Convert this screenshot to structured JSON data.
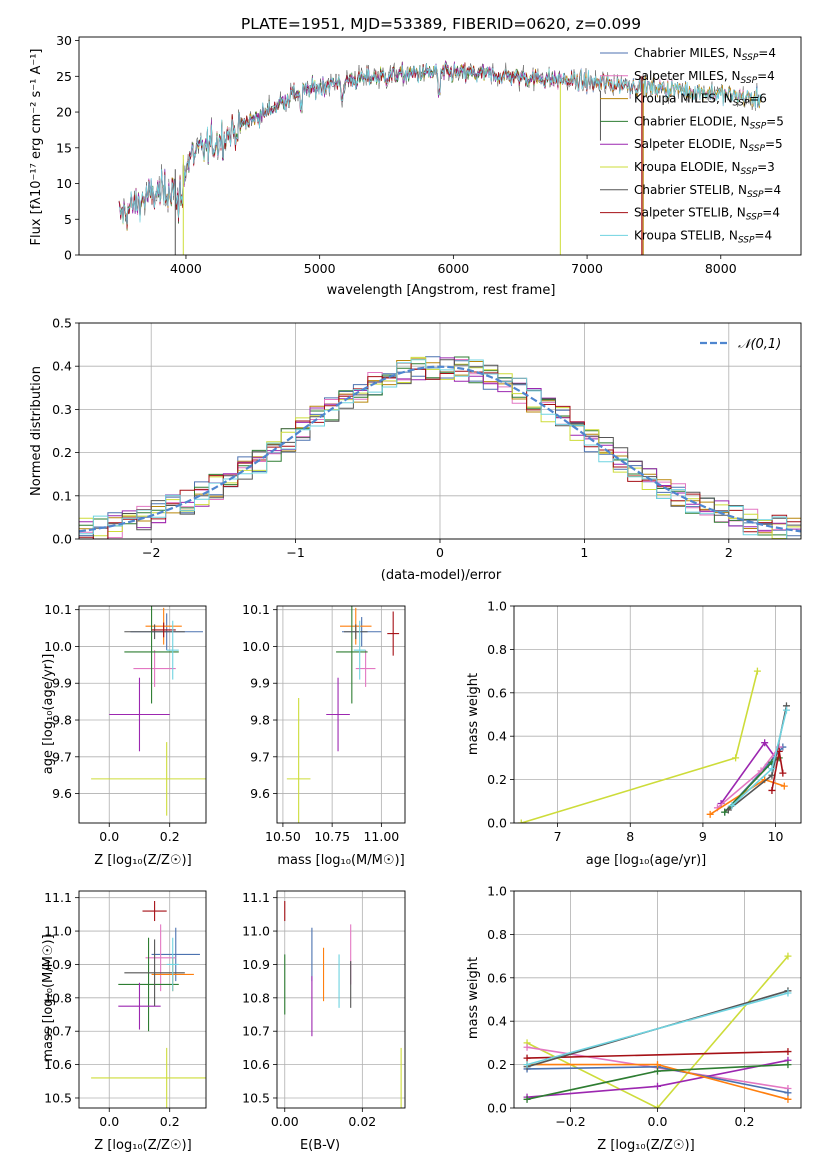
{
  "colors": {
    "Chabrier MILES": "#4c72b0",
    "Salpeter MILES": "#e377c2",
    "Kroupa MILES": "#b8860b",
    "Chabrier ELODIE": "#2e7d32",
    "Salpeter ELODIE": "#9c27b0",
    "Kroupa ELODIE": "#cddc39",
    "Chabrier STELIB": "#555555",
    "Salpeter STELIB": "#a50f15",
    "Kroupa STELIB": "#6fd3e0",
    "extra_orange": "#ff7f0e",
    "gauss": "#4f86cf"
  },
  "chart_data": [
    {
      "id": "spectrum",
      "type": "line",
      "title": "PLATE=1951, MJD=53389, FIBERID=0620, z=0.099",
      "xlabel": "wavelength [Angstrom, rest frame]",
      "ylabel": "Flux [fλ10⁻¹⁷ erg cm⁻² s⁻¹ A⁻¹]",
      "xlim": [
        3200,
        8600
      ],
      "ylim": [
        0,
        30.5
      ],
      "xticks": [
        4000,
        5000,
        6000,
        7000,
        8000
      ],
      "yticks": [
        0,
        5,
        10,
        15,
        20,
        25,
        30
      ],
      "legend_position": "right",
      "legend": [
        "Chabrier MILES, N_SSP=4",
        "Salpeter MILES, N_SSP=4",
        "Kroupa MILES, N_SSP=6",
        "Chabrier ELODIE, N_SSP=5",
        "Salpeter ELODIE, N_SSP=5",
        "Kroupa ELODIE, N_SSP=3",
        "Chabrier STELIB, N_SSP=4",
        "Salpeter STELIB, N_SSP=4",
        "Kroupa STELIB, N_SSP=4"
      ],
      "continuum": {
        "x": [
          3500,
          3700,
          3850,
          3950,
          4050,
          4200,
          4400,
          4600,
          4800,
          5000,
          5200,
          5500,
          5800,
          6000,
          6300,
          6600,
          7000,
          7300,
          7600,
          7900,
          8100,
          8300
        ],
        "y": [
          5.5,
          8.0,
          9.0,
          10.5,
          14.0,
          15.5,
          18.0,
          20.0,
          22.5,
          23.5,
          24.5,
          25.0,
          25.5,
          25.5,
          25.2,
          24.8,
          24.2,
          23.8,
          23.3,
          22.8,
          22.3,
          21.8
        ]
      }
    },
    {
      "id": "residuals",
      "type": "histogram",
      "xlabel": "(data-model)/error",
      "ylabel": "Normed distribution",
      "xlim": [
        -2.5,
        2.5
      ],
      "ylim": [
        0,
        0.5
      ],
      "xticks": [
        -2,
        -1,
        0,
        1,
        2
      ],
      "yticks": [
        0.0,
        0.1,
        0.2,
        0.3,
        0.4,
        0.5
      ],
      "legend_position": "top-right",
      "legend": [
        "𝒩(0,1)"
      ],
      "bin_width": 0.1
    },
    {
      "id": "age_vs_Z",
      "type": "errorbar",
      "xlabel": "Z [log₁₀(Z/Z☉)]",
      "ylabel": "age  [log₁₀(age/yr)]",
      "xlim": [
        -0.1,
        0.32
      ],
      "ylim": [
        9.52,
        10.11
      ],
      "xticks": [
        0.0,
        0.2
      ],
      "yticks": [
        9.6,
        9.7,
        9.8,
        9.9,
        10.0,
        10.1
      ],
      "points": [
        {
          "model": "Chabrier MILES",
          "x": 0.19,
          "xerr": 0.12,
          "y": 10.04,
          "yerr": 0.05
        },
        {
          "model": "Salpeter MILES",
          "x": 0.15,
          "xerr": 0.07,
          "y": 9.94,
          "yerr": 0.05
        },
        {
          "model": "extra_orange",
          "x": 0.18,
          "xerr": 0.06,
          "y": 10.055,
          "yerr": 0.05
        },
        {
          "model": "Chabrier ELODIE",
          "x": 0.14,
          "xerr": 0.09,
          "y": 9.985,
          "yerr": 0.14
        },
        {
          "model": "Salpeter ELODIE",
          "x": 0.1,
          "xerr": 0.1,
          "y": 9.815,
          "yerr": 0.1
        },
        {
          "model": "Kroupa ELODIE",
          "x": 0.19,
          "xerr": 0.25,
          "y": 9.64,
          "yerr": 0.1
        },
        {
          "model": "Chabrier STELIB",
          "x": 0.15,
          "xerr": 0.1,
          "y": 10.04,
          "yerr": 0.02
        },
        {
          "model": "Salpeter STELIB",
          "x": 0.18,
          "xerr": 0.04,
          "y": 10.045,
          "yerr": 0.02
        },
        {
          "model": "Kroupa STELIB",
          "x": 0.21,
          "xerr": 0.02,
          "y": 9.99,
          "yerr": 0.08
        }
      ]
    },
    {
      "id": "age_vs_mass",
      "type": "errorbar",
      "xlabel": "mass [log₁₀(M/M☉)]",
      "ylabel": "",
      "xlim": [
        10.47,
        11.12
      ],
      "ylim": [
        9.52,
        10.11
      ],
      "xticks": [
        10.5,
        10.75,
        11.0
      ],
      "xticklabels": [
        "10.50",
        "10.75",
        "11.00"
      ],
      "yticks": [
        9.6,
        9.7,
        9.8,
        9.9,
        10.0,
        10.1
      ],
      "points": [
        {
          "model": "Chabrier MILES",
          "x": 10.9,
          "xerr": 0.1,
          "y": 10.04,
          "yerr": 0.04
        },
        {
          "model": "Salpeter MILES",
          "x": 10.92,
          "xerr": 0.05,
          "y": 9.94,
          "yerr": 0.05
        },
        {
          "model": "extra_orange",
          "x": 10.87,
          "xerr": 0.08,
          "y": 10.055,
          "yerr": 0.05
        },
        {
          "model": "Chabrier ELODIE",
          "x": 10.85,
          "xerr": 0.08,
          "y": 9.985,
          "yerr": 0.14
        },
        {
          "model": "Salpeter ELODIE",
          "x": 10.78,
          "xerr": 0.06,
          "y": 9.815,
          "yerr": 0.1
        },
        {
          "model": "Kroupa ELODIE",
          "x": 10.58,
          "xerr": 0.06,
          "y": 9.64,
          "yerr": 0.22
        },
        {
          "model": "Chabrier STELIB",
          "x": 10.87,
          "xerr": 0.06,
          "y": 10.04,
          "yerr": 0.02
        },
        {
          "model": "Salpeter STELIB",
          "x": 11.06,
          "xerr": 0.03,
          "y": 10.035,
          "yerr": 0.06
        },
        {
          "model": "Kroupa STELIB",
          "x": 10.89,
          "xerr": 0.03,
          "y": 9.99,
          "yerr": 0.08
        }
      ]
    },
    {
      "id": "weight_vs_age",
      "type": "line",
      "xlabel": "age  [log₁₀(age/yr)]",
      "ylabel": "mass weight",
      "xlim": [
        6.4,
        10.35
      ],
      "ylim": [
        0,
        1.0
      ],
      "xticks": [
        7,
        8,
        9,
        10
      ],
      "yticks": [
        0.0,
        0.2,
        0.4,
        0.6,
        0.8,
        1.0
      ],
      "series": [
        {
          "model": "Kroupa ELODIE",
          "x": [
            6.5,
            9.45,
            9.75
          ],
          "y": [
            0.0,
            0.3,
            0.7
          ]
        },
        {
          "model": "Salpeter ELODIE",
          "x": [
            9.25,
            9.85,
            10.0
          ],
          "y": [
            0.09,
            0.37,
            0.3
          ]
        },
        {
          "model": "Chabrier MILES",
          "x": [
            9.3,
            9.9,
            10.1
          ],
          "y": [
            0.05,
            0.27,
            0.35
          ]
        },
        {
          "model": "Salpeter MILES",
          "x": [
            9.2,
            9.8,
            10.05
          ],
          "y": [
            0.07,
            0.24,
            0.35
          ]
        },
        {
          "model": "extra_orange",
          "x": [
            9.1,
            9.85,
            10.12
          ],
          "y": [
            0.04,
            0.2,
            0.17
          ]
        },
        {
          "model": "Chabrier ELODIE",
          "x": [
            9.3,
            9.95,
            10.05
          ],
          "y": [
            0.05,
            0.28,
            0.3
          ]
        },
        {
          "model": "Chabrier STELIB",
          "x": [
            9.35,
            9.95,
            10.15
          ],
          "y": [
            0.06,
            0.22,
            0.54
          ]
        },
        {
          "model": "Salpeter STELIB",
          "x": [
            9.95,
            10.05,
            10.1
          ],
          "y": [
            0.15,
            0.33,
            0.23
          ]
        },
        {
          "model": "Kroupa STELIB",
          "x": [
            9.4,
            9.95,
            10.15
          ],
          "y": [
            0.08,
            0.25,
            0.52
          ]
        }
      ]
    },
    {
      "id": "mass_vs_Z",
      "type": "errorbar",
      "xlabel": "Z [log₁₀(Z/Z☉)]",
      "ylabel": "mass [log₁₀(M/M☉)]",
      "xlim": [
        -0.1,
        0.32
      ],
      "ylim": [
        10.47,
        11.12
      ],
      "xticks": [
        0.0,
        0.2
      ],
      "yticks": [
        10.5,
        10.6,
        10.7,
        10.8,
        10.9,
        11.0,
        11.1
      ],
      "points": [
        {
          "model": "Chabrier MILES",
          "x": 0.22,
          "xerr": 0.08,
          "y": 10.93,
          "yerr": 0.08
        },
        {
          "model": "Salpeter MILES",
          "x": 0.17,
          "xerr": 0.05,
          "y": 10.92,
          "yerr": 0.1
        },
        {
          "model": "extra_orange",
          "x": 0.21,
          "xerr": 0.07,
          "y": 10.87,
          "yerr": 0.05
        },
        {
          "model": "Chabrier ELODIE",
          "x": 0.13,
          "xerr": 0.1,
          "y": 10.84,
          "yerr": 0.14
        },
        {
          "model": "Salpeter ELODIE",
          "x": 0.1,
          "xerr": 0.07,
          "y": 10.775,
          "yerr": 0.07
        },
        {
          "model": "Kroupa ELODIE",
          "x": 0.19,
          "xerr": 0.25,
          "y": 10.56,
          "yerr": 0.09
        },
        {
          "model": "Chabrier STELIB",
          "x": 0.15,
          "xerr": 0.1,
          "y": 10.875,
          "yerr": 0.1
        },
        {
          "model": "Salpeter STELIB",
          "x": 0.15,
          "xerr": 0.04,
          "y": 11.06,
          "yerr": 0.03
        },
        {
          "model": "Kroupa STELIB",
          "x": 0.21,
          "xerr": 0.02,
          "y": 10.9,
          "yerr": 0.08
        }
      ]
    },
    {
      "id": "mass_vs_EBV",
      "type": "errorbar",
      "xlabel": "E(B-V)",
      "ylabel": "",
      "xlim": [
        -0.002,
        0.031
      ],
      "ylim": [
        10.47,
        11.12
      ],
      "xticks": [
        0.0,
        0.02
      ],
      "xticklabels": [
        "0.00",
        "0.02"
      ],
      "yticks": [
        10.5,
        10.6,
        10.7,
        10.8,
        10.9,
        11.0,
        11.1
      ],
      "points": [
        {
          "model": "Salpeter STELIB",
          "x": 0.0,
          "y": 11.06,
          "yerr": 0.03
        },
        {
          "model": "Chabrier ELODIE",
          "x": 0.0,
          "y": 10.84,
          "yerr": 0.09
        },
        {
          "model": "Chabrier MILES",
          "x": 0.007,
          "y": 10.93,
          "yerr": 0.08
        },
        {
          "model": "Salpeter ELODIE",
          "x": 0.007,
          "y": 10.775,
          "yerr": 0.09
        },
        {
          "model": "extra_orange",
          "x": 0.01,
          "y": 10.87,
          "yerr": 0.08
        },
        {
          "model": "Kroupa STELIB",
          "x": 0.014,
          "y": 10.85,
          "yerr": 0.08
        },
        {
          "model": "Salpeter MILES",
          "x": 0.017,
          "y": 10.93,
          "yerr": 0.09
        },
        {
          "model": "Chabrier STELIB",
          "x": 0.017,
          "y": 10.84,
          "yerr": 0.07
        },
        {
          "model": "Kroupa ELODIE",
          "x": 0.03,
          "y": 10.56,
          "yerr": 0.09
        }
      ]
    },
    {
      "id": "weight_vs_Z",
      "type": "line",
      "xlabel": "Z [log₁₀(Z/Z☉)]",
      "ylabel": "mass weight",
      "xlim": [
        -0.33,
        0.33
      ],
      "ylim": [
        0,
        1.0
      ],
      "xticks": [
        -0.2,
        0.0,
        0.2
      ],
      "yticks": [
        0.0,
        0.2,
        0.4,
        0.6,
        0.8,
        1.0
      ],
      "series": [
        {
          "model": "Kroupa ELODIE",
          "x": [
            -0.3,
            0.0,
            0.3
          ],
          "y": [
            0.3,
            0.0,
            0.7
          ]
        },
        {
          "model": "Salpeter MILES",
          "x": [
            -0.3,
            0.3
          ],
          "y": [
            0.28,
            0.09
          ]
        },
        {
          "model": "Salpeter ELODIE",
          "x": [
            -0.3,
            0.0,
            0.3
          ],
          "y": [
            0.05,
            0.1,
            0.22
          ]
        },
        {
          "model": "Chabrier MILES",
          "x": [
            -0.3,
            0.0,
            0.3
          ],
          "y": [
            0.18,
            0.19,
            0.07
          ]
        },
        {
          "model": "extra_orange",
          "x": [
            -0.3,
            0.0,
            0.3
          ],
          "y": [
            0.2,
            0.2,
            0.04
          ]
        },
        {
          "model": "Chabrier ELODIE",
          "x": [
            -0.3,
            0.0,
            0.3
          ],
          "y": [
            0.04,
            0.17,
            0.2
          ]
        },
        {
          "model": "Salpeter STELIB",
          "x": [
            -0.3,
            0.3
          ],
          "y": [
            0.23,
            0.26
          ]
        },
        {
          "model": "Chabrier STELIB",
          "x": [
            -0.3,
            0.3
          ],
          "y": [
            0.19,
            0.54
          ]
        },
        {
          "model": "Kroupa STELIB",
          "x": [
            -0.3,
            0.3
          ],
          "y": [
            0.2,
            0.53
          ]
        }
      ]
    }
  ]
}
